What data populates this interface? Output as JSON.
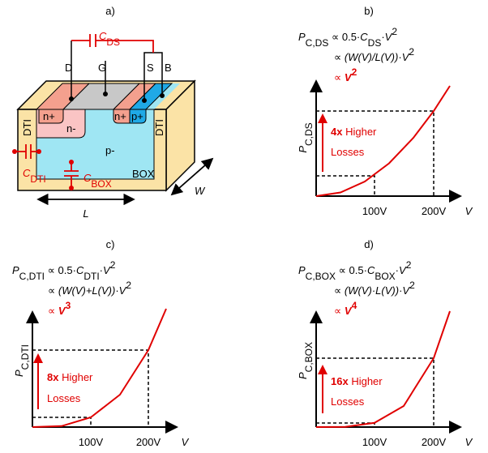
{
  "a": {
    "label": "a)",
    "cds": [
      "C",
      "DS"
    ],
    "terminals": [
      "D",
      "G",
      "S",
      "B"
    ],
    "regions": [
      "n+",
      "n-",
      "n+",
      "p+",
      "p-"
    ],
    "dti": [
      "DTI",
      "DTI"
    ],
    "box": "BOX",
    "cdti": [
      "C",
      "DTI"
    ],
    "cbox": [
      "C",
      "BOX"
    ],
    "w": "W",
    "l": "L"
  },
  "panels": [
    {
      "label": "b)",
      "formula": [
        [
          "P",
          "C,DS",
          " ∝ 0.5·",
          "C",
          "DS",
          "·",
          "V",
          "2"
        ],
        [
          "∝ ",
          "(W(V)/L(V))",
          "·",
          "V",
          "2"
        ],
        [
          "∝ ",
          "V",
          "2"
        ]
      ],
      "y_axis": [
        "P",
        "C,DS"
      ],
      "annotation": [
        "4x",
        " Higher",
        "Losses"
      ],
      "x_ticks": [
        "100V",
        "200V"
      ],
      "x_label": "V"
    },
    {
      "label": "c)",
      "formula": [
        [
          "P",
          "C,DTI",
          " ∝ 0.5·",
          "C",
          "DTI",
          "·",
          "V",
          "2"
        ],
        [
          "∝ ",
          "(W(V)+L(V))",
          "·",
          "V",
          "2"
        ],
        [
          "∝ ",
          "V",
          "3"
        ]
      ],
      "y_axis": [
        "P",
        "C,DTI"
      ],
      "annotation": [
        "8x",
        " Higher",
        "Losses"
      ],
      "x_ticks": [
        "100V",
        "200V"
      ],
      "x_label": "V"
    },
    {
      "label": "d)",
      "formula": [
        [
          "P",
          "C,BOX",
          " ∝ 0.5·",
          "C",
          "BOX",
          "·",
          "V",
          "2"
        ],
        [
          "∝ ",
          "(W(V)·L(V))",
          "·",
          "V",
          "2"
        ],
        [
          "∝ ",
          "V",
          "4"
        ]
      ],
      "y_axis": [
        "P",
        "C,BOX"
      ],
      "annotation": [
        "16x",
        " Higher",
        "Losses"
      ],
      "x_ticks": [
        "100V",
        "200V"
      ],
      "x_label": "V"
    }
  ]
}
